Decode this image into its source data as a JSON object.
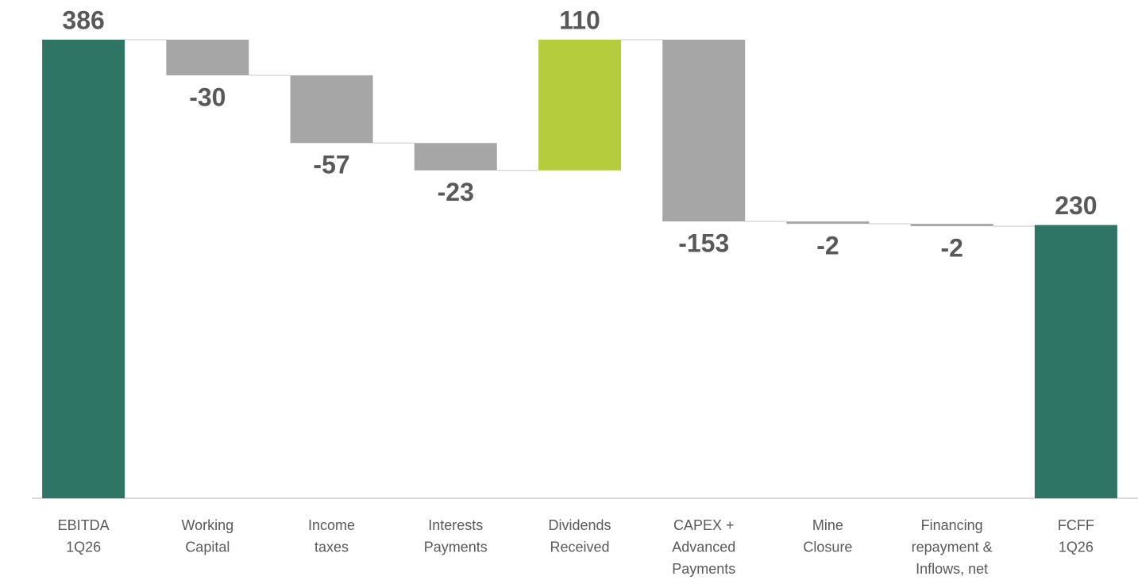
{
  "chart_data": {
    "type": "waterfall",
    "categories": [
      [
        "EBITDA",
        "1Q26"
      ],
      [
        "Working",
        "Capital"
      ],
      [
        "Income",
        "taxes"
      ],
      [
        "Interests",
        "Payments"
      ],
      [
        "Dividends",
        "Received"
      ],
      [
        "CAPEX +",
        "Advanced",
        "Payments"
      ],
      [
        "Mine",
        "Closure"
      ],
      [
        "Financing",
        "repayment &",
        "Inflows, net"
      ],
      [
        "FCFF",
        "1Q26"
      ]
    ],
    "values": [
      386,
      -30,
      -57,
      -23,
      110,
      -153,
      -2,
      -2,
      230
    ],
    "measure": [
      "absolute",
      "relative",
      "relative",
      "relative",
      "relative",
      "relative",
      "relative",
      "relative",
      "absolute"
    ],
    "colors": [
      "#2e7565",
      "#a6a6a6",
      "#a6a6a6",
      "#a6a6a6",
      "#b5cc3d",
      "#a6a6a6",
      "#a6a6a6",
      "#a6a6a6",
      "#2e7565"
    ],
    "ylim": [
      0,
      400
    ]
  }
}
